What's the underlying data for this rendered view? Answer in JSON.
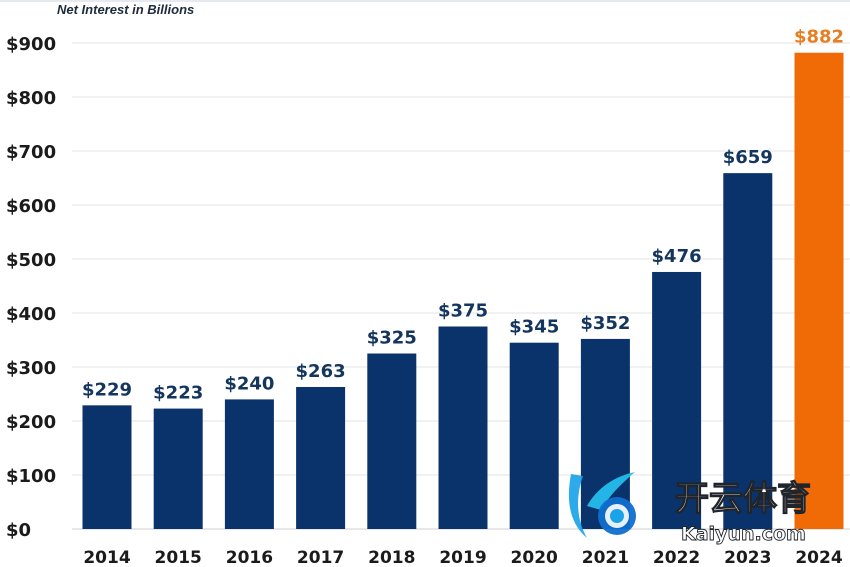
{
  "chart_data": {
    "type": "bar",
    "title": "Net Interest in Billions",
    "categories": [
      "2014",
      "2015",
      "2016",
      "2017",
      "2018",
      "2019",
      "2020",
      "2021",
      "2022",
      "2023",
      "2024"
    ],
    "values": [
      229,
      223,
      240,
      263,
      325,
      375,
      345,
      352,
      476,
      659,
      882
    ],
    "value_labels": [
      "$229",
      "$223",
      "$240",
      "$263",
      "$325",
      "$375",
      "$345",
      "$352",
      "$476",
      "$659",
      "$882"
    ],
    "yticks": [
      "$0",
      "$100",
      "$200",
      "$300",
      "$400",
      "$500",
      "$600",
      "$700",
      "$800",
      "$900"
    ],
    "ytick_values": [
      0,
      100,
      200,
      300,
      400,
      500,
      600,
      700,
      800,
      900
    ],
    "ylim": [
      0,
      900
    ],
    "grid": true,
    "legend": "none",
    "colors": {
      "bar": "#0b336b",
      "highlight_bar": "#f06a05",
      "highlight_label": "#e67e22",
      "value_label": "#13355e",
      "axis_text": "#1b1b1b",
      "grid": "#e3e3e3"
    },
    "highlight_index": 10
  },
  "watermark": {
    "text_cn": "开云体育",
    "text_url": "Kaiyun.com"
  }
}
